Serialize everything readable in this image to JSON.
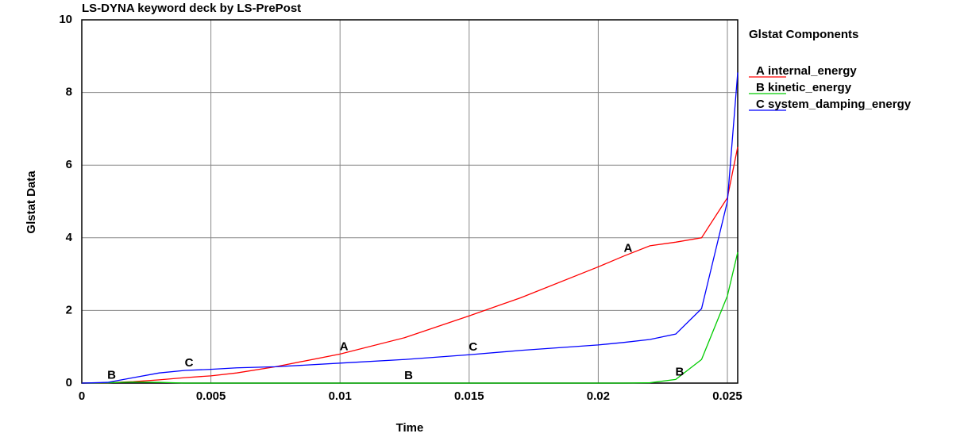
{
  "chart_data": {
    "type": "line",
    "title": "LS-DYNA keyword deck by LS-PrePost",
    "x_label": "Time",
    "y_label": "Glstat Data",
    "legend_title": "Glstat Components",
    "x": [
      0,
      0.001,
      0.002,
      0.003,
      0.004,
      0.005,
      0.006,
      0.0075,
      0.01,
      0.0125,
      0.015,
      0.017,
      0.02,
      0.021,
      0.022,
      0.023,
      0.024,
      0.025,
      0.0254
    ],
    "series": [
      {
        "name": "internal_energy",
        "marker": "A",
        "color": "#ff0000",
        "values": [
          0,
          0.01,
          0.04,
          0.09,
          0.15,
          0.2,
          0.28,
          0.45,
          0.8,
          1.25,
          1.85,
          2.35,
          3.2,
          3.5,
          3.78,
          3.88,
          4.0,
          5.1,
          6.5
        ]
      },
      {
        "name": "kinetic_energy",
        "marker": "B",
        "color": "#00cc00",
        "values": [
          0,
          0.01,
          0.03,
          0.02,
          0,
          0,
          0,
          0,
          0,
          0,
          0,
          0,
          0,
          0,
          0.01,
          0.1,
          0.65,
          2.4,
          3.6
        ]
      },
      {
        "name": "system_damping_energy",
        "marker": "C",
        "color": "#0000ff",
        "values": [
          0,
          0.02,
          0.15,
          0.28,
          0.35,
          0.38,
          0.42,
          0.45,
          0.55,
          0.65,
          0.78,
          0.9,
          1.05,
          1.12,
          1.2,
          1.35,
          2.05,
          5.0,
          8.55
        ]
      }
    ],
    "xlim": [
      0,
      0.0254
    ],
    "ylim": [
      0,
      10
    ],
    "xticks": [
      0,
      0.005,
      0.01,
      0.015,
      0.02,
      0.025
    ],
    "yticks": [
      0,
      2,
      4,
      6,
      8,
      10
    ],
    "grid": true,
    "legend": "right"
  }
}
